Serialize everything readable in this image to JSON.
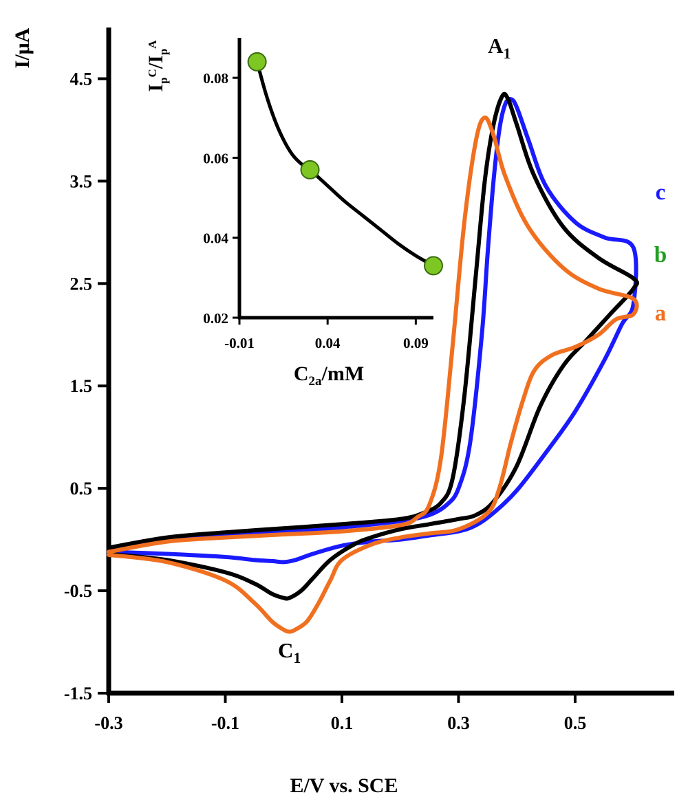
{
  "chart_data": [
    {
      "type": "line",
      "role": "main",
      "xlabel": "E/V vs. SCE",
      "ylabel": "I/μA",
      "xlim": [
        -0.3,
        0.67
      ],
      "ylim": [
        -1.5,
        5.0
      ],
      "xticks": [
        -0.3,
        -0.1,
        0.1,
        0.3,
        0.5
      ],
      "xtick_labels": [
        "-0.3",
        "-0.1",
        "0.1",
        "0.3",
        "0.5"
      ],
      "yticks": [
        -1.5,
        -0.5,
        0.5,
        1.5,
        2.5,
        3.5,
        4.5
      ],
      "ytick_labels": [
        "-1.5",
        "-0.5",
        "0.5",
        "1.5",
        "2.5",
        "3.5",
        "4.5"
      ],
      "grid": false,
      "annotations": [
        {
          "text": "A",
          "sub": "1",
          "x": 0.37,
          "y": 4.75
        },
        {
          "text": "C",
          "sub": "1",
          "x": 0.01,
          "y": -1.15
        }
      ],
      "series": [
        {
          "label": "c",
          "color": "#1a1aff",
          "x": [
            -0.3,
            -0.2,
            -0.1,
            0.0,
            0.1,
            0.2,
            0.25,
            0.28,
            0.3,
            0.32,
            0.34,
            0.35,
            0.36,
            0.37,
            0.38,
            0.39,
            0.4,
            0.42,
            0.45,
            0.5,
            0.55,
            0.6,
            0.6,
            0.58,
            0.55,
            0.5,
            0.45,
            0.4,
            0.36,
            0.33,
            0.3,
            0.25,
            0.2,
            0.15,
            0.1,
            0.05,
            0.02,
            0.0,
            -0.02,
            -0.05,
            -0.1,
            -0.2,
            -0.3
          ],
          "y": [
            -0.12,
            0.0,
            0.05,
            0.08,
            0.12,
            0.18,
            0.24,
            0.34,
            0.5,
            0.95,
            2.0,
            2.8,
            3.5,
            4.0,
            4.25,
            4.3,
            4.22,
            3.9,
            3.45,
            3.1,
            2.95,
            2.85,
            2.3,
            2.1,
            1.75,
            1.25,
            0.85,
            0.48,
            0.26,
            0.14,
            0.08,
            0.04,
            0.0,
            -0.02,
            -0.06,
            -0.14,
            -0.2,
            -0.22,
            -0.21,
            -0.2,
            -0.17,
            -0.14,
            -0.12
          ]
        },
        {
          "label": "b",
          "color": "#1f9e1f",
          "line_color": "#000000",
          "x": [
            -0.3,
            -0.2,
            -0.1,
            0.0,
            0.1,
            0.2,
            0.24,
            0.27,
            0.29,
            0.31,
            0.33,
            0.345,
            0.36,
            0.375,
            0.385,
            0.4,
            0.43,
            0.48,
            0.54,
            0.6,
            0.6,
            0.56,
            0.52,
            0.48,
            0.44,
            0.4,
            0.36,
            0.33,
            0.3,
            0.25,
            0.2,
            0.15,
            0.12,
            0.08,
            0.05,
            0.03,
            0.01,
            0.0,
            -0.02,
            -0.05,
            -0.1,
            -0.2,
            -0.3
          ],
          "y": [
            -0.08,
            0.02,
            0.07,
            0.11,
            0.15,
            0.2,
            0.26,
            0.36,
            0.6,
            1.4,
            2.6,
            3.5,
            4.05,
            4.33,
            4.3,
            4.05,
            3.55,
            3.05,
            2.75,
            2.55,
            2.45,
            2.2,
            1.95,
            1.7,
            1.3,
            0.72,
            0.37,
            0.24,
            0.2,
            0.15,
            0.1,
            0.02,
            -0.05,
            -0.2,
            -0.38,
            -0.5,
            -0.57,
            -0.57,
            -0.53,
            -0.43,
            -0.32,
            -0.2,
            -0.14
          ]
        },
        {
          "label": "a",
          "color": "#f07020",
          "x": [
            -0.3,
            -0.2,
            -0.1,
            0.0,
            0.1,
            0.2,
            0.23,
            0.25,
            0.27,
            0.29,
            0.31,
            0.33,
            0.345,
            0.36,
            0.38,
            0.42,
            0.48,
            0.54,
            0.6,
            0.6,
            0.57,
            0.54,
            0.5,
            0.46,
            0.43,
            0.41,
            0.39,
            0.37,
            0.35,
            0.3,
            0.25,
            0.2,
            0.15,
            0.1,
            0.08,
            0.06,
            0.04,
            0.02,
            0.01,
            0.0,
            -0.02,
            -0.05,
            -0.1,
            -0.2,
            -0.3
          ],
          "y": [
            -0.12,
            -0.02,
            0.02,
            0.05,
            0.08,
            0.14,
            0.22,
            0.34,
            0.8,
            1.9,
            3.1,
            3.9,
            4.12,
            3.95,
            3.55,
            3.05,
            2.65,
            2.45,
            2.35,
            2.2,
            2.15,
            2.0,
            1.88,
            1.8,
            1.65,
            1.35,
            0.95,
            0.5,
            0.26,
            0.1,
            0.06,
            0.02,
            -0.05,
            -0.2,
            -0.4,
            -0.62,
            -0.8,
            -0.88,
            -0.9,
            -0.88,
            -0.8,
            -0.62,
            -0.4,
            -0.22,
            -0.15
          ]
        }
      ]
    },
    {
      "type": "scatter",
      "role": "inset",
      "xlabel": "C",
      "xlabel_sub": "2a",
      "xlabel_rest": "/mM",
      "ylabel": "I",
      "ylabel_parts": [
        {
          "text": "I",
          "pos": "base"
        },
        {
          "text": "p",
          "pos": "sub"
        },
        {
          "text": "C",
          "pos": "sup"
        },
        {
          "text": "/I",
          "pos": "base"
        },
        {
          "text": "p",
          "pos": "sub"
        },
        {
          "text": "A",
          "pos": "sup"
        }
      ],
      "xlim": [
        -0.01,
        0.1
      ],
      "ylim": [
        0.02,
        0.09
      ],
      "xticks": [
        -0.01,
        0.04,
        0.09
      ],
      "xtick_labels": [
        "-0.01",
        "0.04",
        "0.09"
      ],
      "yticks": [
        0.02,
        0.04,
        0.06,
        0.08
      ],
      "ytick_labels": [
        "0.02",
        "0.04",
        "0.06",
        "0.08"
      ],
      "marker_color": "#7dc624",
      "line_color": "#000000",
      "x": [
        0.0,
        0.03,
        0.1
      ],
      "y": [
        0.084,
        0.057,
        0.033
      ],
      "fit_x": [
        0.0,
        0.005,
        0.01,
        0.015,
        0.02,
        0.025,
        0.03,
        0.04,
        0.05,
        0.06,
        0.07,
        0.08,
        0.09,
        0.1
      ],
      "fit_y": [
        0.084,
        0.076,
        0.0695,
        0.0645,
        0.0608,
        0.0585,
        0.057,
        0.053,
        0.049,
        0.0455,
        0.042,
        0.0385,
        0.0355,
        0.033
      ]
    }
  ]
}
